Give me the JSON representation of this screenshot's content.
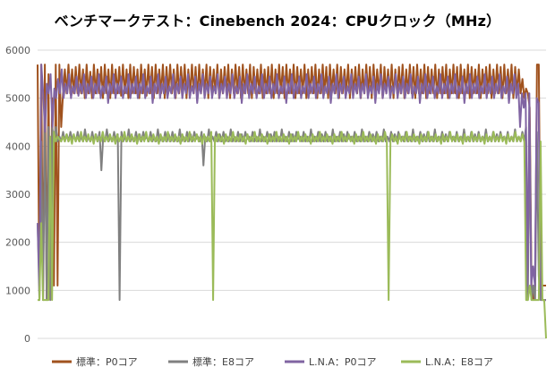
{
  "chart_data": {
    "type": "line",
    "title": "ベンチマークテスト：Cinebench 2024：CPUクロック（MHz）",
    "xlabel": "",
    "ylabel": "",
    "ylim": [
      0,
      6000
    ],
    "yticks": [
      0,
      1000,
      2000,
      3000,
      4000,
      5000,
      6000
    ],
    "grid": true,
    "legend_position": "bottom",
    "x_label_visible": false,
    "series": [
      {
        "name": "標準：P0コア",
        "color": "#A0521E",
        "values": [
          5700,
          800,
          5700,
          800,
          5700,
          800,
          5500,
          800,
          5000,
          1100,
          5700,
          1100,
          5700,
          4400,
          5100,
          5600,
          5100,
          5700,
          5100,
          5600,
          5100,
          5650,
          5100,
          5700,
          5100,
          5600,
          5000,
          5700,
          5100,
          5550,
          5000,
          5700,
          5100,
          5600,
          5100,
          5650,
          5000,
          5700,
          5100,
          5600,
          5000,
          5700,
          5100,
          5600,
          5100,
          5650,
          5050,
          5700,
          5100,
          5600,
          5000,
          5700,
          5100,
          5650,
          5100,
          5600,
          5000,
          5700,
          5100,
          5600,
          5050,
          5700,
          5100,
          5650,
          5000,
          5700,
          5100,
          5600,
          5100,
          5700,
          5000,
          5650,
          5100,
          5700,
          5100,
          5600,
          5000,
          5700,
          5100,
          5650,
          5100,
          5700,
          5000,
          5600,
          5100,
          5700,
          5100,
          5650,
          5000,
          5700,
          5100,
          5600,
          5100,
          5700,
          5000,
          5650,
          5100,
          5600,
          5100,
          5700,
          5000,
          5600,
          5100,
          5650,
          5100,
          5700,
          5000,
          5600,
          5100,
          5700,
          5100,
          5650,
          5000,
          5700,
          5100,
          5600,
          5100,
          5700,
          5000,
          5650,
          5100,
          5600,
          5100,
          5700,
          5000,
          5600,
          5100,
          5650,
          5100,
          5700,
          5000,
          5600,
          5100,
          5700,
          5100,
          5650,
          5000,
          5700,
          5100,
          5600,
          5100,
          5700,
          5000,
          5650,
          5100,
          5600,
          5100,
          5700,
          5000,
          5600,
          5100,
          5650,
          5100,
          5700,
          5000,
          5600,
          5100,
          5700,
          5100,
          5650,
          5000,
          5700,
          5100,
          5600,
          5100,
          5700,
          5000,
          5650,
          5100,
          5600,
          5100,
          5700,
          5000,
          5600,
          5100,
          5650,
          5100,
          5700,
          5000,
          5600,
          5100,
          5700,
          5100,
          5650,
          5000,
          5700,
          5100,
          5600,
          5100,
          5700,
          5000,
          5650,
          5100,
          5600,
          5100,
          5700,
          5000,
          5600,
          5100,
          5650,
          5100,
          5700,
          5000,
          5600,
          5100,
          5700,
          5100,
          5650,
          5000,
          5700,
          5100,
          5600,
          5100,
          5700,
          5000,
          5650,
          5100,
          5600,
          5100,
          5700,
          5000,
          5600,
          5100,
          5650,
          5100,
          5700,
          5000,
          5600,
          5100,
          5700,
          5100,
          5650,
          5000,
          5700,
          5100,
          5600,
          5100,
          5700,
          5000,
          5650,
          5100,
          5600,
          5100,
          5700,
          5000,
          5600,
          5100,
          5650,
          5100,
          5700,
          5000,
          5600,
          5100,
          5700,
          5100,
          5650,
          5000,
          5700,
          5100,
          5600,
          5100,
          5700,
          5000,
          5650,
          5100,
          5600,
          5100,
          5400,
          5000,
          5200,
          5100,
          4800,
          1100,
          800,
          1100,
          5700,
          5700,
          1100,
          1100,
          1100,
          1100
        ]
      },
      {
        "name": "標準：E8コア",
        "color": "#808080",
        "values": [
          2400,
          800,
          4100,
          800,
          4400,
          800,
          4400,
          800,
          4400,
          4100,
          4400,
          4100,
          4200,
          4100,
          4300,
          4100,
          4250,
          4100,
          4300,
          4150,
          4200,
          4100,
          4300,
          4100,
          4200,
          4100,
          4350,
          4100,
          4200,
          4100,
          4300,
          4100,
          4250,
          4100,
          4300,
          3500,
          4200,
          4100,
          4350,
          4100,
          4200,
          4100,
          4300,
          4100,
          4250,
          800,
          4300,
          4100,
          4200,
          4100,
          4350,
          4100,
          4200,
          4100,
          4300,
          4100,
          4250,
          4100,
          4300,
          4150,
          4200,
          4100,
          4300,
          4100,
          4200,
          4100,
          4350,
          4100,
          4200,
          4100,
          4300,
          4100,
          4250,
          4100,
          4300,
          4100,
          4200,
          4100,
          4350,
          4100,
          4200,
          4100,
          4300,
          4100,
          4250,
          4100,
          4300,
          4150,
          4200,
          4100,
          4300,
          3600,
          4200,
          4100,
          4350,
          4100,
          4200,
          4100,
          4300,
          4100,
          4250,
          4100,
          4300,
          4100,
          4200,
          4100,
          4350,
          4100,
          4200,
          4100,
          4300,
          4100,
          4250,
          4100,
          4300,
          4150,
          4200,
          4100,
          4300,
          4100,
          4200,
          4100,
          4350,
          4100,
          4200,
          4100,
          4300,
          4100,
          4250,
          4100,
          4300,
          4100,
          4200,
          4100,
          4350,
          4100,
          4200,
          4100,
          4300,
          4100,
          4250,
          4100,
          4300,
          4150,
          4200,
          4100,
          4300,
          4100,
          4200,
          4100,
          4350,
          4100,
          4200,
          4100,
          4300,
          4100,
          4250,
          4100,
          4300,
          4100,
          4200,
          4100,
          4350,
          4100,
          4200,
          4100,
          4300,
          4100,
          4250,
          4100,
          4300,
          4150,
          4200,
          4100,
          4300,
          4100,
          4200,
          4100,
          4350,
          4100,
          4200,
          4100,
          4300,
          4100,
          4250,
          4100,
          4300,
          4100,
          4200,
          4100,
          4350,
          4100,
          4200,
          4100,
          4300,
          4100,
          4250,
          4100,
          4300,
          4150,
          4200,
          4100,
          4300,
          4100,
          4200,
          4100,
          4350,
          4100,
          4200,
          4100,
          4300,
          4100,
          4250,
          4100,
          4300,
          4100,
          4200,
          4100,
          4350,
          4100,
          4200,
          4100,
          4300,
          4100,
          4250,
          4100,
          4300,
          4150,
          4200,
          4100,
          4300,
          4100,
          4200,
          4100,
          4350,
          4100,
          4200,
          4100,
          4300,
          4100,
          4250,
          4100,
          4300,
          4100,
          4200,
          4100,
          4350,
          4100,
          4200,
          4100,
          4300,
          4100,
          4250,
          4100,
          4300,
          4150,
          4200,
          4100,
          4300,
          4100,
          4200,
          4100,
          4350,
          4100,
          4200,
          4100,
          4300,
          4100,
          4400,
          800,
          4400,
          800,
          1100,
          800,
          4300,
          1300,
          800,
          800,
          800,
          800
        ]
      },
      {
        "name": "L.N.A：P0コア",
        "color": "#8064A2",
        "values": [
          2400,
          1100,
          5700,
          5100,
          4300,
          5300,
          5100,
          5500,
          4400,
          5200,
          5000,
          5400,
          5100,
          5600,
          5000,
          5300,
          5100,
          5500,
          5000,
          5250,
          5100,
          5450,
          5050,
          5300,
          5100,
          5500,
          5000,
          5300,
          5100,
          5450,
          5000,
          5300,
          5100,
          5500,
          5000,
          5250,
          5100,
          5450,
          4900,
          5300,
          5100,
          5500,
          5000,
          5300,
          5100,
          5450,
          5000,
          5250,
          5100,
          5500,
          5000,
          5300,
          5100,
          5450,
          5000,
          5300,
          5100,
          5500,
          5000,
          5250,
          5100,
          5450,
          4900,
          5300,
          5100,
          5500,
          5000,
          5300,
          5100,
          5450,
          5000,
          5250,
          5100,
          5500,
          5000,
          5300,
          5100,
          5450,
          5000,
          5300,
          5100,
          5500,
          5000,
          5250,
          5100,
          5450,
          4900,
          5300,
          5100,
          5500,
          5000,
          5300,
          5100,
          5450,
          5000,
          5250,
          5100,
          5500,
          5000,
          5300,
          5100,
          5450,
          5000,
          5300,
          5100,
          5500,
          5000,
          5250,
          5100,
          5450,
          4900,
          5300,
          5100,
          5500,
          5000,
          5300,
          5100,
          5450,
          5000,
          5250,
          5100,
          5500,
          5000,
          5300,
          5100,
          5450,
          5000,
          5300,
          5100,
          5500,
          5000,
          5250,
          5100,
          5450,
          4900,
          5300,
          5100,
          5500,
          5000,
          5300,
          5100,
          5450,
          5000,
          5250,
          5100,
          5500,
          5000,
          5300,
          5100,
          5450,
          5000,
          5300,
          5100,
          5500,
          5000,
          5250,
          5100,
          5450,
          4900,
          5300,
          5100,
          5500,
          5000,
          5300,
          5100,
          5450,
          5000,
          5250,
          5100,
          5500,
          5000,
          5300,
          5100,
          5450,
          5000,
          5300,
          5100,
          5500,
          5000,
          5250,
          5100,
          5450,
          4900,
          5300,
          5100,
          5500,
          5000,
          5300,
          5100,
          5450,
          5000,
          5250,
          5100,
          5500,
          5000,
          5300,
          5100,
          5450,
          5000,
          5300,
          5100,
          5500,
          5000,
          5250,
          5100,
          5450,
          4900,
          5300,
          5100,
          5500,
          5000,
          5300,
          5100,
          5450,
          5000,
          5250,
          5100,
          5500,
          5000,
          5300,
          5100,
          5450,
          5000,
          5300,
          5100,
          5500,
          5000,
          5250,
          5100,
          5450,
          4900,
          5300,
          5100,
          5500,
          5000,
          5300,
          5100,
          5450,
          5000,
          5250,
          5100,
          5500,
          5000,
          5300,
          5100,
          5450,
          5000,
          5300,
          5100,
          5500,
          5000,
          5250,
          5100,
          5450,
          4900,
          5300,
          5100,
          5500,
          5000,
          5300,
          4400,
          5100,
          4800,
          5100,
          1100,
          5100,
          1100,
          1500,
          1100,
          5000,
          4900,
          1100,
          800,
          800,
          800
        ]
      },
      {
        "name": "L.N.A：E8コア",
        "color": "#9BBB59",
        "values": [
          800,
          800,
          2400,
          800,
          800,
          800,
          800,
          4200,
          800,
          4300,
          4100,
          4200,
          4150,
          4100,
          4200,
          4100,
          4250,
          4100,
          4200,
          4050,
          4250,
          4100,
          4200,
          4100,
          4300,
          4100,
          4200,
          4100,
          4250,
          4100,
          4200,
          4050,
          4250,
          4100,
          4200,
          4100,
          4300,
          4100,
          4200,
          4100,
          4250,
          4100,
          4200,
          4050,
          4250,
          4100,
          4200,
          4100,
          4300,
          4100,
          4200,
          4100,
          4250,
          4100,
          4200,
          4050,
          4250,
          4100,
          4200,
          4100,
          4300,
          4100,
          4200,
          4100,
          4250,
          4100,
          4200,
          4050,
          4250,
          4100,
          4200,
          4100,
          4300,
          4100,
          4200,
          4100,
          4250,
          4100,
          4200,
          4050,
          4250,
          4100,
          4200,
          4100,
          4300,
          4100,
          4200,
          4100,
          4250,
          4100,
          4200,
          4050,
          4250,
          4100,
          4200,
          4100,
          4300,
          800,
          4200,
          4100,
          4250,
          4100,
          4200,
          4050,
          4250,
          4100,
          4200,
          4100,
          4300,
          4100,
          4200,
          4100,
          4250,
          4100,
          4200,
          4050,
          4250,
          4100,
          4200,
          4100,
          4300,
          4100,
          4200,
          4100,
          4250,
          4100,
          4200,
          4050,
          4250,
          4100,
          4200,
          4100,
          4300,
          4100,
          4200,
          4100,
          4250,
          4100,
          4200,
          4050,
          4250,
          4100,
          4200,
          4100,
          4300,
          4100,
          4200,
          4100,
          4250,
          4100,
          4200,
          4050,
          4250,
          4100,
          4200,
          4100,
          4300,
          4100,
          4200,
          4100,
          4250,
          4100,
          4200,
          4050,
          4250,
          4100,
          4200,
          4100,
          4300,
          4100,
          4200,
          4100,
          4250,
          4100,
          4200,
          4050,
          4250,
          4100,
          4200,
          4100,
          4300,
          4100,
          4200,
          4100,
          4250,
          4100,
          4200,
          4050,
          4250,
          4100,
          4200,
          4100,
          4300,
          4100,
          800,
          4100,
          4250,
          4100,
          4200,
          4050,
          4250,
          4100,
          4200,
          4100,
          4300,
          4100,
          4200,
          4100,
          4250,
          4100,
          4200,
          4050,
          4250,
          4100,
          4200,
          4100,
          4300,
          4100,
          4200,
          4100,
          4250,
          4100,
          4200,
          4050,
          4250,
          4100,
          4200,
          4100,
          4300,
          4100,
          4200,
          4100,
          4250,
          4100,
          4200,
          4050,
          4250,
          4100,
          4200,
          4100,
          4300,
          4100,
          4200,
          4100,
          4250,
          4100,
          4200,
          4050,
          4250,
          4100,
          4200,
          4100,
          4300,
          4100,
          4200,
          4100,
          4250,
          4100,
          4200,
          4050,
          4250,
          4100,
          4200,
          4100,
          4300,
          4100,
          4200,
          4100,
          4250,
          4100,
          800,
          800,
          1100,
          800,
          800,
          800,
          800,
          800,
          4100,
          800,
          800,
          0
        ]
      }
    ]
  }
}
